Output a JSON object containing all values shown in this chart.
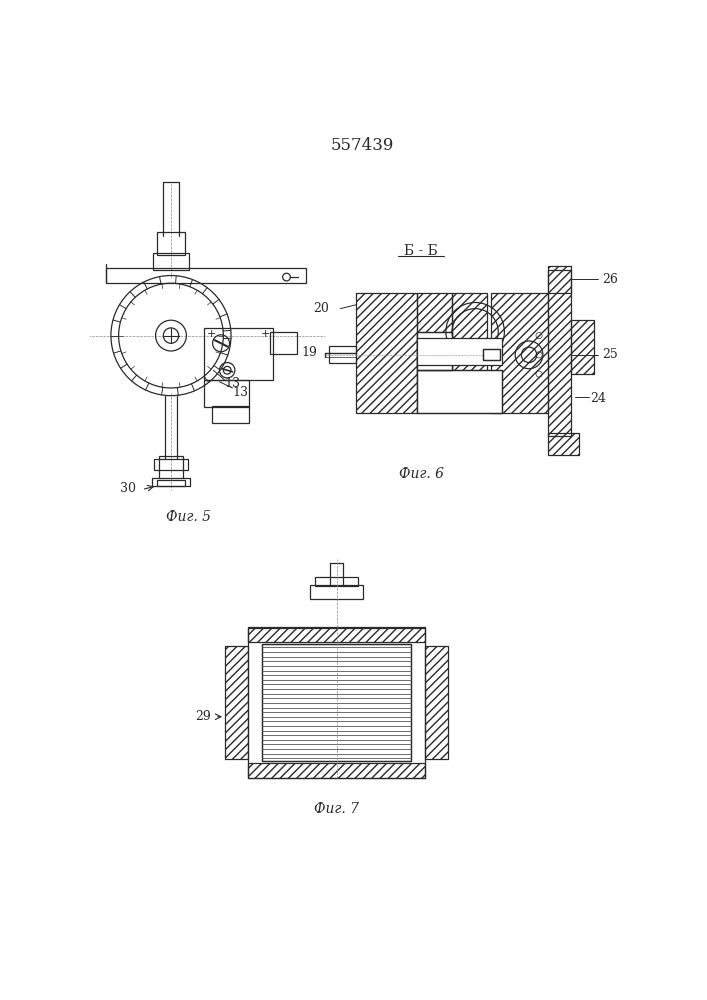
{
  "title": "557439",
  "bg_color": "#ffffff",
  "line_color": "#2a2a2a",
  "fig5_label": "Фиг. 5",
  "fig6_label": "Фиг. 6",
  "fig7_label": "Фиг. 7",
  "section_label": "Б - Б",
  "label_13a": "13",
  "label_13b": "13",
  "label_19": "19",
  "label_20": "20",
  "label_24": "24",
  "label_25": "25",
  "label_26": "26",
  "label_29": "29",
  "label_30": "30"
}
